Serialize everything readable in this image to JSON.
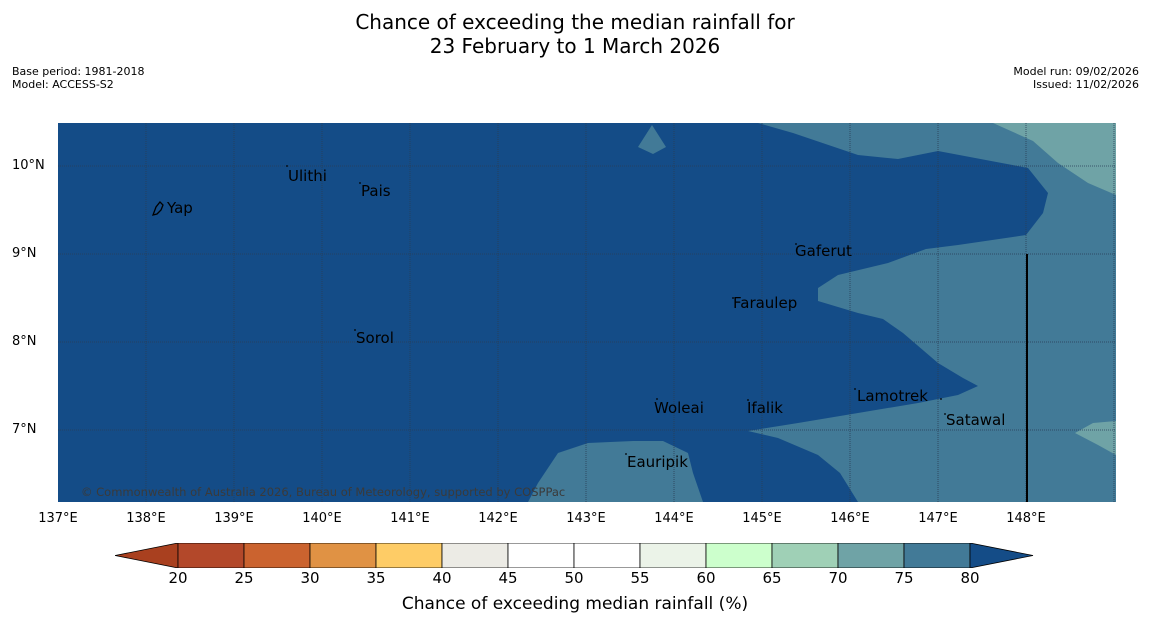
{
  "title": {
    "line1": "Chance of exceeding the median rainfall for",
    "line2": "23 February to 1 March 2026"
  },
  "meta": {
    "base_period": "Base period: 1981-2018",
    "model": "Model: ACCESS-S2",
    "model_run": "Model run: 09/02/2026",
    "issued": "Issued: 11/02/2026"
  },
  "map": {
    "lat_labels": [
      "10°N",
      "9°N",
      "8°N",
      "7°N"
    ],
    "lon_labels": [
      "137°E",
      "138°E",
      "139°E",
      "140°E",
      "141°E",
      "142°E",
      "143°E",
      "144°E",
      "145°E",
      "146°E",
      "147°E",
      "148°E"
    ],
    "places": [
      "Ulithi",
      "Pais",
      "Yap",
      "Gaferut",
      "Faraulep",
      "Sorol",
      "Woleai",
      "Ifalik",
      "Lamotrek",
      "Satawal",
      "Eauripik"
    ],
    "copyright": "© Commonwealth of Australia 2026, Bureau of Meteorology, supported by COSPPac",
    "colors": {
      "class_80_plus": "#144c87",
      "class_75_80": "#427a97",
      "class_70_75": "#6fa3a6",
      "grid": "#2a3d55",
      "coast": "#000000"
    }
  },
  "colorbar": {
    "ticks": [
      "20",
      "25",
      "30",
      "35",
      "40",
      "45",
      "50",
      "55",
      "60",
      "65",
      "70",
      "75",
      "80"
    ],
    "colors": [
      "#a9401f",
      "#b3482a",
      "#cb632f",
      "#e09244",
      "#fecc66",
      "#ecebe5",
      "#ffffff",
      "#ffffff",
      "#ebf3e8",
      "#ccffcc",
      "#9fd0b6",
      "#6fa3a6",
      "#427a97",
      "#144c87"
    ],
    "label": "Chance of exceeding median rainfall (%)"
  }
}
